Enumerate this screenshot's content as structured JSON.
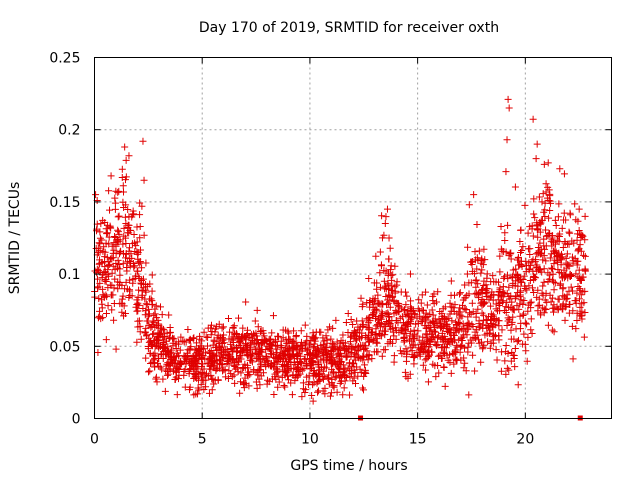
{
  "chart_data": {
    "type": "scatter",
    "title": "Day 170 of 2019, SRMTID for receiver oxth",
    "xlabel": "GPS time / hours",
    "ylabel": "SRMTID / TECUs",
    "xlim": [
      0,
      24
    ],
    "ylim": [
      0,
      0.25
    ],
    "xticks": [
      0,
      5,
      10,
      15,
      20
    ],
    "yticks": [
      0,
      0.05,
      0.1,
      0.15,
      0.2,
      0.25
    ],
    "ytick_labels": [
      "0",
      "0.05",
      "0.1",
      "0.15",
      "0.2",
      "0.25"
    ],
    "xtick_labels": [
      "0",
      "5",
      "10",
      "15",
      "20"
    ],
    "grid": true,
    "marker": "plus",
    "color": "#e00000",
    "series": [
      {
        "name": "SRMTID",
        "note": "dense scatter; representative envelope values by hour",
        "x": [
          0.0,
          0.5,
          1.0,
          1.5,
          2.0,
          2.5,
          3.0,
          3.5,
          4.0,
          4.5,
          5.0,
          5.5,
          6.0,
          6.5,
          7.0,
          7.5,
          8.0,
          8.5,
          9.0,
          9.5,
          10.0,
          10.5,
          11.0,
          11.5,
          12.0,
          12.5,
          13.0,
          13.5,
          14.0,
          14.5,
          15.0,
          15.5,
          16.0,
          16.5,
          17.0,
          17.5,
          18.0,
          18.5,
          19.0,
          19.5,
          20.0,
          20.5,
          21.0,
          21.5,
          22.0,
          22.5
        ],
        "y_mean": [
          0.1,
          0.1,
          0.11,
          0.12,
          0.1,
          0.07,
          0.05,
          0.045,
          0.04,
          0.038,
          0.04,
          0.042,
          0.045,
          0.045,
          0.045,
          0.045,
          0.044,
          0.042,
          0.042,
          0.04,
          0.04,
          0.04,
          0.04,
          0.042,
          0.045,
          0.05,
          0.07,
          0.085,
          0.075,
          0.065,
          0.06,
          0.058,
          0.058,
          0.06,
          0.065,
          0.08,
          0.075,
          0.075,
          0.08,
          0.085,
          0.09,
          0.11,
          0.12,
          0.1,
          0.1,
          0.1
        ],
        "y_spread": [
          0.035,
          0.035,
          0.04,
          0.04,
          0.045,
          0.03,
          0.02,
          0.018,
          0.016,
          0.016,
          0.017,
          0.018,
          0.018,
          0.018,
          0.018,
          0.018,
          0.017,
          0.017,
          0.017,
          0.016,
          0.017,
          0.017,
          0.017,
          0.018,
          0.02,
          0.025,
          0.03,
          0.035,
          0.025,
          0.022,
          0.02,
          0.02,
          0.02,
          0.022,
          0.025,
          0.035,
          0.03,
          0.03,
          0.04,
          0.05,
          0.04,
          0.04,
          0.04,
          0.035,
          0.035,
          0.035
        ],
        "outliers": [
          {
            "x": 0.05,
            "y": 0.155
          },
          {
            "x": 1.4,
            "y": 0.188
          },
          {
            "x": 1.6,
            "y": 0.182
          },
          {
            "x": 2.25,
            "y": 0.192
          },
          {
            "x": 2.3,
            "y": 0.165
          },
          {
            "x": 2.2,
            "y": 0.147
          },
          {
            "x": 13.6,
            "y": 0.145
          },
          {
            "x": 13.5,
            "y": 0.135
          },
          {
            "x": 17.6,
            "y": 0.155
          },
          {
            "x": 17.4,
            "y": 0.148
          },
          {
            "x": 19.2,
            "y": 0.221
          },
          {
            "x": 19.25,
            "y": 0.215
          },
          {
            "x": 19.15,
            "y": 0.193
          },
          {
            "x": 19.1,
            "y": 0.171
          },
          {
            "x": 20.55,
            "y": 0.19
          },
          {
            "x": 20.5,
            "y": 0.18
          },
          {
            "x": 21.6,
            "y": 0.173
          },
          {
            "x": 22.5,
            "y": 0.145
          },
          {
            "x": 10.15,
            "y": 0.012
          },
          {
            "x": 9.8,
            "y": 0.02
          }
        ],
        "x_start": 0.0,
        "x_end": 22.8
      }
    ],
    "axis_markers": [
      {
        "x": 12.35,
        "y": 0
      },
      {
        "x": 22.55,
        "y": 0
      }
    ]
  }
}
